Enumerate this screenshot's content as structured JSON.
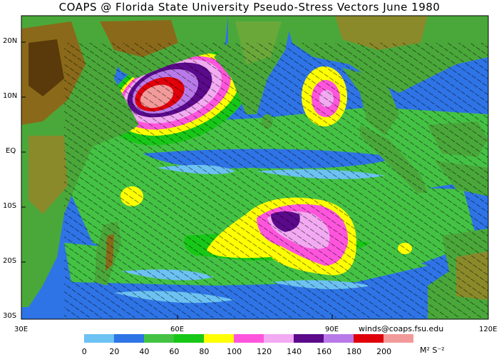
{
  "title": "COAPS @ Florida State University Pseudo-Stress Vectors  June 1980",
  "credit": "winds@coaps.fsu.edu",
  "lat_labels": [
    "20N",
    "10N",
    "EQ",
    "10S",
    "20S",
    "30S"
  ],
  "lon_labels": [
    "30E",
    "60E",
    "90E",
    "120E"
  ],
  "colorbar": {
    "ticks": [
      "0",
      "20",
      "40",
      "60",
      "80",
      "100",
      "120",
      "140",
      "160",
      "180",
      "200"
    ],
    "units": "M² S⁻²",
    "colors": [
      "#6cc2f2",
      "#2e74e6",
      "#44c244",
      "#18c818",
      "#ffff00",
      "#ff55dd",
      "#f2aaf2",
      "#5a0a8a",
      "#b87ae8",
      "#e0000a",
      "#f29a9a"
    ]
  },
  "colors": {
    "ocean_low": "#2e74e6",
    "ocean_lowest": "#6cc2f2",
    "land": "#4aa83a",
    "land_high": "#8a6a1a",
    "coast": "#c8c8c8"
  }
}
